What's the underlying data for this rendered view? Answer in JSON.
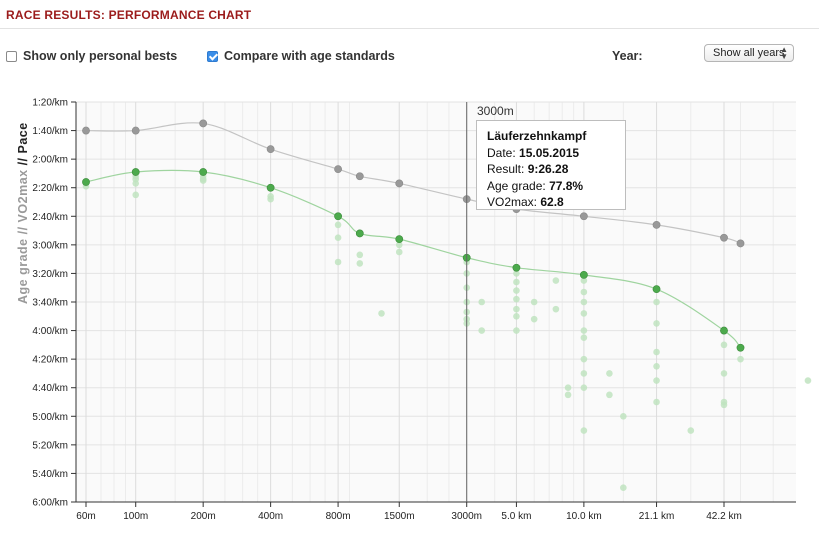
{
  "header": {
    "title": "RACE RESULTS: PERFORMANCE CHART"
  },
  "controls": {
    "personal_bests": {
      "label": "Show only personal bests",
      "checked": false
    },
    "age_standards": {
      "label": "Compare with age standards",
      "checked": true
    },
    "year_label": "Year:",
    "year_select": "Show all years"
  },
  "ylabel_parts": {
    "age_grade": "Age grade",
    "sep": "//",
    "vo2max": "VO2max",
    "pace": "Pace"
  },
  "cursor": {
    "label": "3000m",
    "x": "3000m"
  },
  "tooltip": {
    "event": "Läuferzehnkampf",
    "date_label": "Date:",
    "date": "15.05.2015",
    "result_label": "Result:",
    "result": "9:26.28",
    "age_grade_label": "Age grade:",
    "age_grade": "77.8%",
    "vo2max_label": "VO2max:",
    "vo2max": "62.8"
  },
  "colors": {
    "standard": "#999999",
    "personal": "#4caa4c",
    "personal_faint": "#bfe3bf",
    "cursor": "#666666"
  },
  "chart_data": {
    "type": "line",
    "x_scale": "distance (log-like)",
    "y_unit": "pace per km (m:ss), inverted axis",
    "x_ticks": [
      "60m",
      "100m",
      "200m",
      "400m",
      "800m",
      "1500m",
      "3000m",
      "5.0 km",
      "10.0 km",
      "21.1 km",
      "42.2 km"
    ],
    "y_ticks": [
      "1:20/km",
      "1:40/km",
      "2:00/km",
      "2:20/km",
      "2:40/km",
      "3:00/km",
      "3:20/km",
      "3:40/km",
      "4:00/km",
      "4:20/km",
      "4:40/km",
      "5:00/km",
      "5:20/km",
      "5:40/km",
      "6:00/km"
    ],
    "ylim": [
      "1:20/km",
      "6:00/km"
    ],
    "series": [
      {
        "name": "Age standards",
        "points": [
          {
            "x": "60m",
            "y": "1:40"
          },
          {
            "x": "100m",
            "y": "1:40"
          },
          {
            "x": "200m",
            "y": "1:35"
          },
          {
            "x": "400m",
            "y": "1:53"
          },
          {
            "x": "800m",
            "y": "2:07"
          },
          {
            "x": "1000m",
            "y": "2:12"
          },
          {
            "x": "1500m",
            "y": "2:17"
          },
          {
            "x": "3000m",
            "y": "2:28"
          },
          {
            "x": "5.0 km",
            "y": "2:35"
          },
          {
            "x": "10.0 km",
            "y": "2:40"
          },
          {
            "x": "21.1 km",
            "y": "2:46"
          },
          {
            "x": "42.2 km",
            "y": "2:55"
          },
          {
            "x": "50 km",
            "y": "2:59"
          }
        ]
      },
      {
        "name": "Personal bests",
        "points": [
          {
            "x": "60m",
            "y": "2:16"
          },
          {
            "x": "100m",
            "y": "2:09"
          },
          {
            "x": "200m",
            "y": "2:09"
          },
          {
            "x": "400m",
            "y": "2:20"
          },
          {
            "x": "800m",
            "y": "2:40"
          },
          {
            "x": "1000m",
            "y": "2:52"
          },
          {
            "x": "1500m",
            "y": "2:56"
          },
          {
            "x": "3000m",
            "y": "3:09"
          },
          {
            "x": "5.0 km",
            "y": "3:16"
          },
          {
            "x": "10.0 km",
            "y": "3:21"
          },
          {
            "x": "21.1 km",
            "y": "3:31"
          },
          {
            "x": "42.2 km",
            "y": "4:00"
          },
          {
            "x": "50 km",
            "y": "4:12"
          }
        ]
      }
    ],
    "other_results": [
      {
        "x": "60m",
        "y": [
          "2:17",
          "2:19"
        ]
      },
      {
        "x": "100m",
        "y": [
          "2:12",
          "2:14",
          "2:17",
          "2:25"
        ]
      },
      {
        "x": "200m",
        "y": [
          "2:12",
          "2:14",
          "2:15"
        ]
      },
      {
        "x": "400m",
        "y": [
          "2:26",
          "2:28"
        ]
      },
      {
        "x": "800m",
        "y": [
          "2:46",
          "2:55",
          "3:12"
        ]
      },
      {
        "x": "1000m",
        "y": [
          "3:07",
          "3:13"
        ]
      },
      {
        "x": "1500m",
        "y": [
          "3:00",
          "3:05"
        ]
      },
      {
        "x": "1250m",
        "y": [
          "3:48"
        ]
      },
      {
        "x": "3000m",
        "y": [
          "3:12",
          "3:20",
          "3:30",
          "3:40",
          "3:47",
          "3:52",
          "3:55"
        ]
      },
      {
        "x": "3500m",
        "y": [
          "3:40",
          "4:00"
        ]
      },
      {
        "x": "5.0 km",
        "y": [
          "3:20",
          "3:26",
          "3:32",
          "3:38",
          "3:45",
          "3:50",
          "4:00"
        ]
      },
      {
        "x": "6 km",
        "y": [
          "3:40",
          "3:52"
        ]
      },
      {
        "x": "7.5 km",
        "y": [
          "3:25",
          "3:45"
        ]
      },
      {
        "x": "8.5 km",
        "y": [
          "4:40",
          "4:45"
        ]
      },
      {
        "x": "10.0 km",
        "y": [
          "3:25",
          "3:33",
          "3:40",
          "3:48",
          "4:00",
          "4:05",
          "4:20",
          "4:30",
          "4:40",
          "5:10"
        ]
      },
      {
        "x": "13 km",
        "y": [
          "4:30",
          "4:45"
        ]
      },
      {
        "x": "15 km",
        "y": [
          "5:00",
          "5:50"
        ]
      },
      {
        "x": "21.1 km",
        "y": [
          "3:40",
          "3:55",
          "4:15",
          "4:25",
          "4:35",
          "4:50"
        ]
      },
      {
        "x": "30 km",
        "y": [
          "5:10"
        ]
      },
      {
        "x": "42.2 km",
        "y": [
          "4:10",
          "4:30",
          "4:50",
          "4:52"
        ]
      },
      {
        "x": "50 km",
        "y": [
          "4:20"
        ]
      },
      {
        "x": "100 km",
        "y": [
          "4:35"
        ]
      }
    ]
  }
}
